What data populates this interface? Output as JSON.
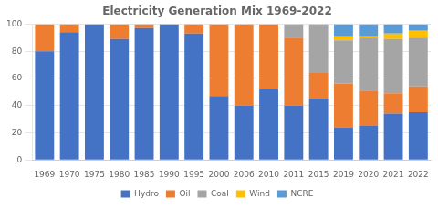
{
  "chart_data": {
    "type": "bar",
    "stacked": true,
    "title": "Electricity Generation Mix 1969-2022",
    "categories": [
      "1969",
      "1970",
      "1975",
      "1980",
      "1985",
      "1990",
      "1995",
      "2000",
      "2006",
      "2010",
      "2011",
      "2015",
      "2019",
      "2020",
      "2021",
      "2022"
    ],
    "series": [
      {
        "name": "Hydro",
        "color": "#4472C4",
        "values": [
          80,
          94,
          100,
          89,
          97,
          100,
          93,
          47,
          40,
          52,
          40,
          45,
          24,
          25,
          34,
          35
        ]
      },
      {
        "name": "Oil",
        "color": "#ED7D31",
        "values": [
          20,
          6,
          0,
          11,
          3,
          0,
          7,
          53,
          60,
          48,
          50,
          19,
          32,
          26,
          15,
          19
        ]
      },
      {
        "name": "Coal",
        "color": "#A5A5A5",
        "values": [
          0,
          0,
          0,
          0,
          0,
          0,
          0,
          0,
          0,
          0,
          10,
          36,
          32,
          39,
          40,
          36
        ]
      },
      {
        "name": "Wind",
        "color": "#FFC000",
        "values": [
          0,
          0,
          0,
          0,
          0,
          0,
          0,
          0,
          0,
          0,
          0,
          0,
          3,
          1,
          4,
          5
        ]
      },
      {
        "name": "NCRE",
        "color": "#5B9BD5",
        "values": [
          0,
          0,
          0,
          0,
          0,
          0,
          0,
          0,
          0,
          0,
          0,
          0,
          9,
          9,
          7,
          5
        ]
      }
    ],
    "ylim": [
      0,
      100
    ],
    "yticks": [
      0,
      20,
      40,
      60,
      80,
      100
    ],
    "grid": true,
    "legend": "bottom"
  }
}
